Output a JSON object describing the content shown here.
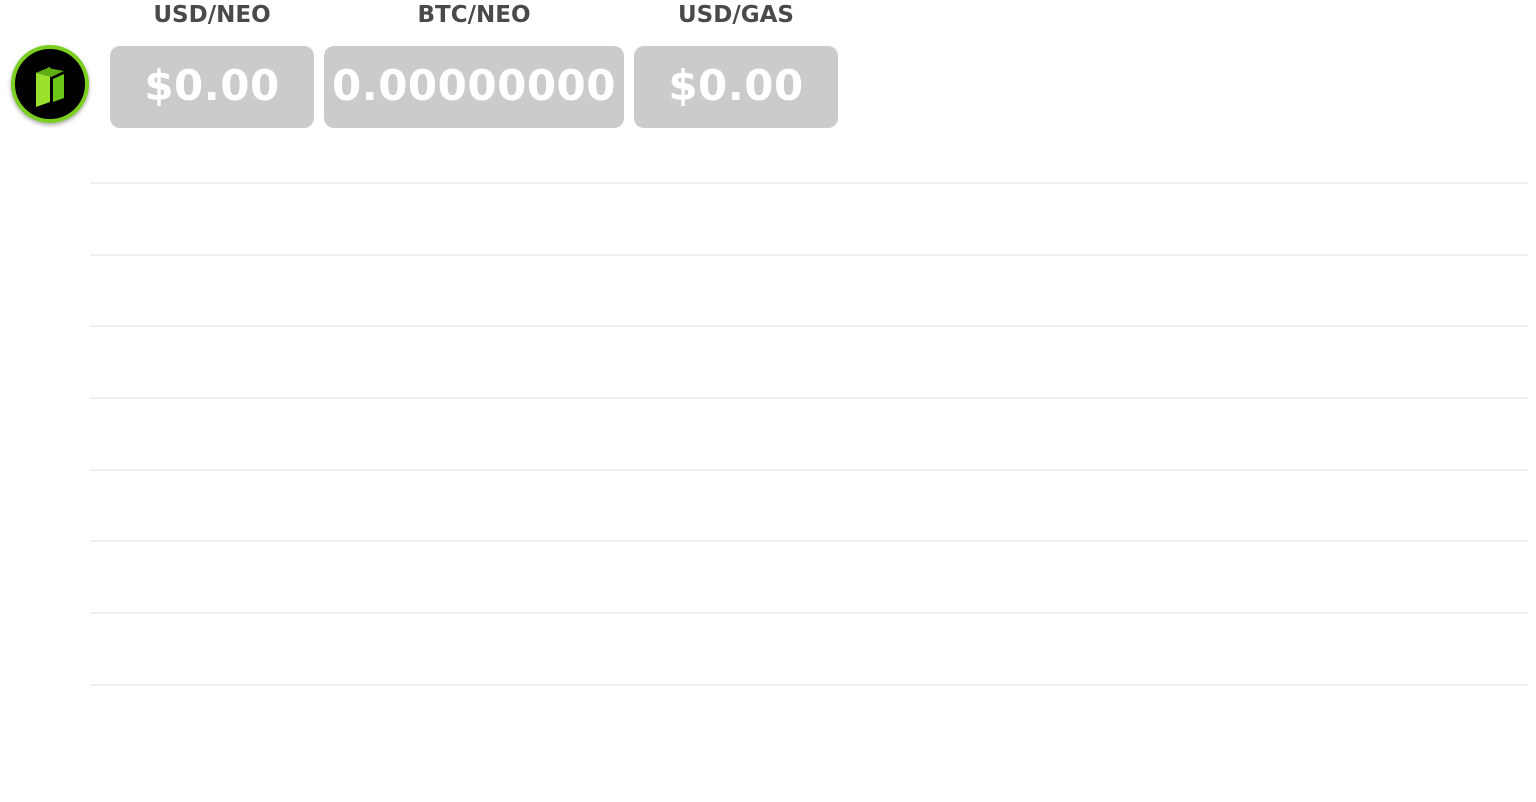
{
  "logo": {
    "icon": "neo-logo-icon",
    "ring_color": "#7ccf22"
  },
  "tickers": [
    {
      "label": "USD/NEO",
      "value": "$0.00"
    },
    {
      "label": "BTC/NEO",
      "value": "0.00000000"
    },
    {
      "label": "USD/GAS",
      "value": "$0.00"
    }
  ],
  "colors": {
    "box_bg": "#cbcbcb",
    "label_text": "#4a4a4a",
    "value_text": "#ffffff",
    "gridline": "#efefef"
  }
}
